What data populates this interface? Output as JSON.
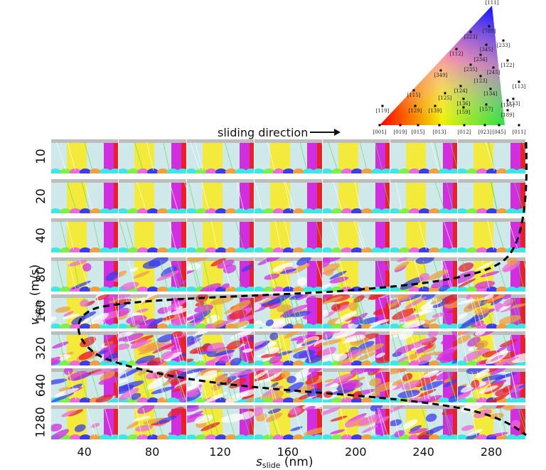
{
  "figure": {
    "y_axis_title": {
      "symbol": "v",
      "subscript": "slide",
      "unit": "(m/s)"
    },
    "x_axis_title": {
      "symbol": "s",
      "subscript": "slide",
      "unit": "(nm)"
    },
    "sliding_direction_label": "sliding direction",
    "row_labels": [
      "10",
      "20",
      "40",
      "80",
      "160",
      "320",
      "640",
      "1280"
    ],
    "x_tick_labels": [
      "40",
      "80",
      "120",
      "160",
      "200",
      "240",
      "280"
    ],
    "legend_type": "inverse pole figure triangle",
    "ipf_labels": {
      "apex": "[111]",
      "interior": [
        "[789]",
        "[223]",
        "[233]",
        "[112]",
        "[345]",
        "[234]",
        "[122]",
        "[235]",
        "[245]",
        "[113]",
        "[349]",
        "[123]",
        "[133]",
        "[124]",
        "[134]",
        "[115]",
        "[125]",
        "[135]",
        "[136]",
        "[119]",
        "[129]",
        "[139]",
        "[159]",
        "[157]",
        "[189]"
      ],
      "bottom": [
        "[001]",
        "[019]",
        "[015]",
        "[013]",
        "[012]",
        "[023]",
        "[045]",
        "[011]"
      ]
    },
    "colors": {
      "red": "#e8202a",
      "magenta": "#d12ee0",
      "yellow": "#f4ea3c",
      "lightcyan": "#cfe8ea",
      "cyan": "#3ee6e4",
      "lime": "#7ff04a",
      "blue": "#3b3ee8",
      "pink": "#ee6ad8",
      "orange": "#f0a040"
    },
    "trend_curve_note": "dashed curve indicating onset of deformation vs speed"
  }
}
